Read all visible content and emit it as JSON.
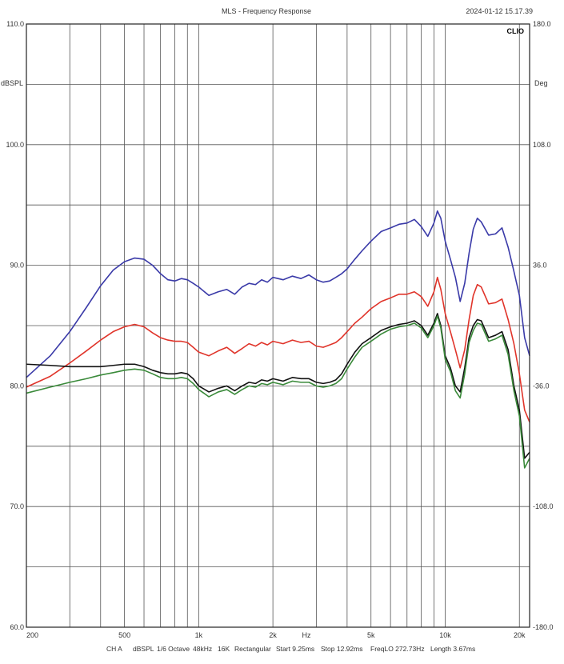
{
  "header": {
    "title": "MLS - Frequency Response",
    "timestamp": "2024-01-12 15.17.39",
    "brand": "CLIO"
  },
  "footer": {
    "channel": "CH A",
    "unit": "dBSPL",
    "smoothing": "1/6 Octave",
    "sample_rate": "48kHz",
    "size": "16K",
    "window": "Rectangular",
    "start": "Start 9.25ms",
    "stop": "Stop 12.92ms",
    "freq_lo": "FreqLO 272.73Hz",
    "length": "Length 3.67ms"
  },
  "chart_data": {
    "type": "line",
    "title": "MLS - Frequency Response",
    "xlabel": "Hz",
    "ylabel": "dBSPL",
    "y2label": "Deg",
    "xscale": "log",
    "xlim": [
      200,
      22000
    ],
    "ylim": [
      60,
      110
    ],
    "y2lim": [
      -180,
      180
    ],
    "grid": true,
    "x_ticks": [
      200,
      500,
      1000,
      2000,
      5000,
      10000,
      20000
    ],
    "x_tick_labels": [
      "200",
      "500",
      "1k",
      "2k",
      "5k",
      "10k",
      "20k"
    ],
    "y_ticks": [
      60,
      70,
      80,
      90,
      100,
      110
    ],
    "y_tick_labels": [
      "60.0",
      "70.0",
      "80.0",
      "90.0",
      "100.0",
      "110.0"
    ],
    "y2_ticks": [
      -180,
      -108,
      -36,
      36,
      108,
      180
    ],
    "y2_tick_labels": [
      "-180.0",
      "-108.0",
      "-36.0",
      "36.0",
      "108.0",
      "180.0"
    ],
    "series": [
      {
        "color": "#3a3aa8",
        "x": [
          200,
          250,
          300,
          350,
          400,
          450,
          500,
          550,
          600,
          650,
          700,
          750,
          800,
          850,
          900,
          950,
          1000,
          1100,
          1200,
          1300,
          1400,
          1500,
          1600,
          1700,
          1800,
          1900,
          2000,
          2200,
          2400,
          2600,
          2800,
          3000,
          3200,
          3400,
          3600,
          3800,
          4000,
          4300,
          4600,
          5000,
          5500,
          6000,
          6500,
          7000,
          7500,
          8000,
          8500,
          9000,
          9300,
          9600,
          10000,
          10500,
          11000,
          11500,
          12000,
          12500,
          13000,
          13500,
          14000,
          15000,
          16000,
          17000,
          18000,
          19000,
          20000,
          21000,
          22000
        ],
        "y": [
          80.7,
          82.5,
          84.5,
          86.5,
          88.3,
          89.6,
          90.3,
          90.6,
          90.5,
          90.0,
          89.3,
          88.8,
          88.7,
          88.9,
          88.8,
          88.5,
          88.2,
          87.5,
          87.8,
          88.0,
          87.6,
          88.2,
          88.5,
          88.4,
          88.8,
          88.6,
          89.0,
          88.8,
          89.1,
          88.9,
          89.2,
          88.8,
          88.6,
          88.7,
          89.0,
          89.3,
          89.7,
          90.5,
          91.2,
          92.0,
          92.8,
          93.1,
          93.4,
          93.5,
          93.8,
          93.2,
          92.4,
          93.5,
          94.5,
          93.9,
          92.0,
          90.5,
          89.0,
          87.0,
          88.5,
          91.0,
          93.0,
          93.9,
          93.6,
          92.5,
          92.6,
          93.1,
          91.5,
          89.5,
          87.5,
          84.0,
          82.5
        ]
      },
      {
        "color": "#e0342a",
        "x": [
          200,
          250,
          300,
          350,
          400,
          450,
          500,
          550,
          600,
          650,
          700,
          750,
          800,
          850,
          900,
          950,
          1000,
          1100,
          1200,
          1300,
          1400,
          1500,
          1600,
          1700,
          1800,
          1900,
          2000,
          2200,
          2400,
          2600,
          2800,
          3000,
          3200,
          3400,
          3600,
          3800,
          4000,
          4300,
          4600,
          5000,
          5500,
          6000,
          6500,
          7000,
          7500,
          8000,
          8500,
          9000,
          9300,
          9600,
          10000,
          10500,
          11000,
          11500,
          12000,
          12500,
          13000,
          13500,
          14000,
          15000,
          16000,
          17000,
          18000,
          19000,
          20000,
          21000,
          22000
        ],
        "y": [
          79.9,
          80.8,
          81.9,
          82.9,
          83.8,
          84.5,
          84.9,
          85.1,
          84.9,
          84.4,
          84.0,
          83.8,
          83.7,
          83.7,
          83.6,
          83.2,
          82.8,
          82.5,
          82.9,
          83.2,
          82.7,
          83.1,
          83.5,
          83.3,
          83.6,
          83.4,
          83.7,
          83.5,
          83.8,
          83.6,
          83.7,
          83.3,
          83.2,
          83.4,
          83.6,
          84.0,
          84.5,
          85.2,
          85.7,
          86.4,
          87.0,
          87.3,
          87.6,
          87.6,
          87.8,
          87.4,
          86.6,
          87.8,
          89.0,
          88.0,
          86.0,
          84.5,
          83.0,
          81.5,
          83.0,
          85.5,
          87.5,
          88.4,
          88.2,
          86.8,
          86.9,
          87.2,
          85.5,
          83.5,
          81.0,
          78.0,
          77.0
        ]
      },
      {
        "color": "#111111",
        "x": [
          200,
          250,
          300,
          350,
          400,
          450,
          500,
          550,
          600,
          650,
          700,
          750,
          800,
          850,
          900,
          950,
          1000,
          1100,
          1200,
          1300,
          1400,
          1500,
          1600,
          1700,
          1800,
          1900,
          2000,
          2200,
          2400,
          2600,
          2800,
          3000,
          3200,
          3400,
          3600,
          3800,
          4000,
          4300,
          4600,
          5000,
          5500,
          6000,
          6500,
          7000,
          7500,
          8000,
          8500,
          9000,
          9300,
          9600,
          10000,
          10500,
          11000,
          11500,
          12000,
          12500,
          13000,
          13500,
          14000,
          15000,
          16000,
          17000,
          18000,
          19000,
          20000,
          21000,
          22000
        ],
        "y": [
          81.8,
          81.7,
          81.6,
          81.6,
          81.6,
          81.7,
          81.8,
          81.8,
          81.6,
          81.3,
          81.1,
          81.0,
          81.0,
          81.1,
          81.0,
          80.6,
          80.0,
          79.5,
          79.8,
          80.0,
          79.6,
          80.0,
          80.3,
          80.2,
          80.5,
          80.4,
          80.6,
          80.4,
          80.7,
          80.6,
          80.6,
          80.3,
          80.2,
          80.3,
          80.5,
          81.0,
          81.8,
          82.8,
          83.5,
          84.0,
          84.6,
          84.9,
          85.1,
          85.2,
          85.4,
          85.0,
          84.2,
          85.2,
          86.0,
          85.0,
          82.5,
          81.5,
          80.0,
          79.5,
          81.5,
          84.0,
          85.0,
          85.5,
          85.4,
          84.0,
          84.2,
          84.5,
          83.0,
          80.0,
          78.0,
          74.0,
          74.5
        ]
      },
      {
        "color": "#3a8a3a",
        "x": [
          200,
          250,
          300,
          350,
          400,
          450,
          500,
          550,
          600,
          650,
          700,
          750,
          800,
          850,
          900,
          950,
          1000,
          1100,
          1200,
          1300,
          1400,
          1500,
          1600,
          1700,
          1800,
          1900,
          2000,
          2200,
          2400,
          2600,
          2800,
          3000,
          3200,
          3400,
          3600,
          3800,
          4000,
          4300,
          4600,
          5000,
          5500,
          6000,
          6500,
          7000,
          7500,
          8000,
          8500,
          9000,
          9300,
          9600,
          10000,
          10500,
          11000,
          11500,
          12000,
          12500,
          13000,
          13500,
          14000,
          15000,
          16000,
          17000,
          18000,
          19000,
          20000,
          21000,
          22000
        ],
        "y": [
          79.4,
          79.9,
          80.3,
          80.6,
          80.9,
          81.1,
          81.3,
          81.4,
          81.3,
          81.0,
          80.7,
          80.6,
          80.6,
          80.7,
          80.6,
          80.2,
          79.7,
          79.1,
          79.5,
          79.7,
          79.3,
          79.7,
          80.0,
          79.9,
          80.2,
          80.1,
          80.3,
          80.1,
          80.4,
          80.3,
          80.3,
          80.0,
          79.9,
          80.0,
          80.2,
          80.6,
          81.4,
          82.4,
          83.2,
          83.7,
          84.3,
          84.7,
          84.9,
          85.0,
          85.2,
          84.8,
          84.0,
          85.0,
          85.8,
          84.8,
          82.2,
          81.2,
          79.6,
          79.0,
          81.0,
          83.6,
          84.6,
          85.2,
          85.1,
          83.7,
          83.9,
          84.2,
          82.6,
          79.6,
          77.5,
          73.2,
          74.0
        ]
      }
    ]
  }
}
